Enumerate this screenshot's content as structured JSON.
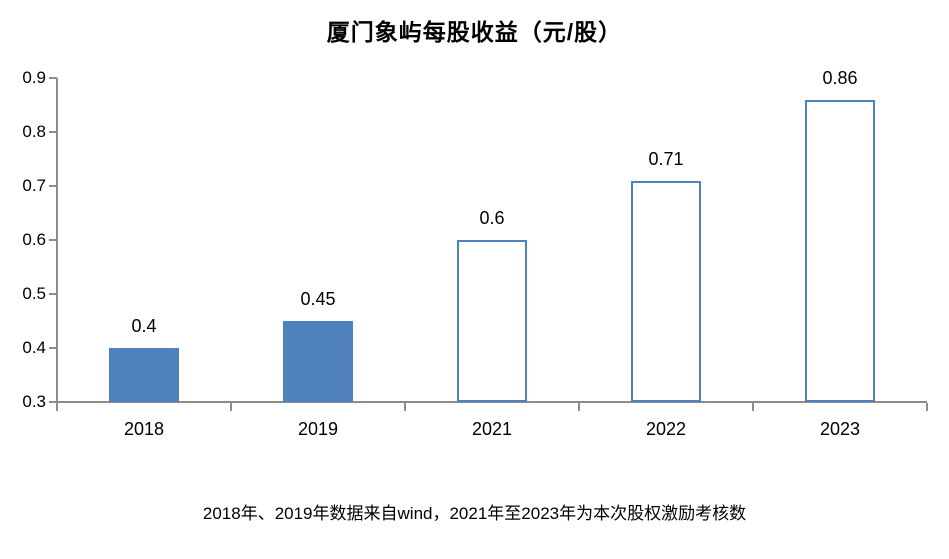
{
  "title": "厦门象屿每股收益（元/股）",
  "caption": "2018年、2019年数据来自wind，2021年至2023年为本次股权激励考核数",
  "chart_data": {
    "type": "bar",
    "title": "厦门象屿每股收益（元/股）",
    "categories": [
      "2018",
      "2019",
      "2021",
      "2022",
      "2023"
    ],
    "values": [
      0.4,
      0.45,
      0.6,
      0.71,
      0.86
    ],
    "value_labels": [
      "0.4",
      "0.45",
      "0.6",
      "0.71",
      "0.86"
    ],
    "bar_style": [
      "filled",
      "filled",
      "hollow",
      "hollow",
      "hollow"
    ],
    "xlabel": "",
    "ylabel": "",
    "ylim": [
      0.3,
      0.9
    ],
    "ytick_labels": [
      "0.9",
      "0.8",
      "0.7",
      "0.6",
      "0.5",
      "0.4",
      "0.3"
    ],
    "grid": false,
    "legend": "none",
    "annotation": "2018年、2019年数据来自wind，2021年至2023年为本次股权激励考核数",
    "colors": {
      "bar_fill": "#4f81bd",
      "bar_outline": "#4f81bd",
      "axis": "#8c8c8c",
      "text": "#000000"
    }
  }
}
